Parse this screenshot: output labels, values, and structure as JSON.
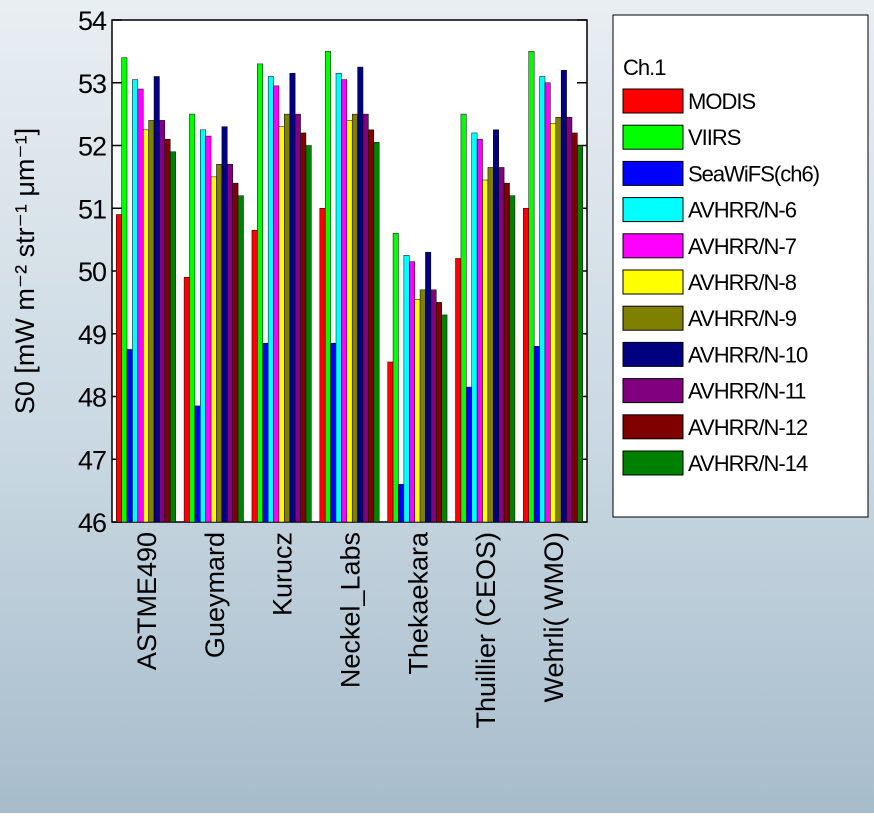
{
  "chart_data": {
    "type": "bar",
    "y_label": "S0 [mW m⁻² str⁻¹ μm⁻¹]",
    "legend_title": "Ch.1",
    "legend_position": "right",
    "categories": [
      "ASTME490",
      "Gueymard",
      "Kurucz",
      "Neckel_Labs",
      "Thekaekara",
      "Thuillier (CEOS)",
      "Wehrli( WMO)"
    ],
    "ylim": [
      46,
      54
    ],
    "yticks": [
      46,
      47,
      48,
      49,
      50,
      51,
      52,
      53,
      54
    ],
    "grid": false,
    "series": [
      {
        "name": "MODIS",
        "color": "#ff0000",
        "values": [
          50.9,
          49.9,
          50.65,
          51.0,
          48.55,
          50.2,
          51.0
        ]
      },
      {
        "name": "VIIRS",
        "color": "#00ff00",
        "values": [
          53.4,
          52.5,
          53.3,
          53.5,
          50.6,
          52.5,
          53.5
        ]
      },
      {
        "name": "SeaWiFS(ch6)",
        "color": "#0000ff",
        "values": [
          48.75,
          47.85,
          48.85,
          48.85,
          46.6,
          48.15,
          48.8
        ]
      },
      {
        "name": "AVHRR/N-6",
        "color": "#00ffff",
        "values": [
          53.05,
          52.25,
          53.1,
          53.15,
          50.25,
          52.2,
          53.1
        ]
      },
      {
        "name": "AVHRR/N-7",
        "color": "#ff00ff",
        "values": [
          52.9,
          52.15,
          52.95,
          53.05,
          50.15,
          52.1,
          53.0
        ]
      },
      {
        "name": "AVHRR/N-8",
        "color": "#ffff00",
        "values": [
          52.25,
          51.5,
          52.3,
          52.4,
          49.55,
          51.45,
          52.35
        ]
      },
      {
        "name": "AVHRR/N-9",
        "color": "#808000",
        "values": [
          52.4,
          51.7,
          52.5,
          52.5,
          49.7,
          51.65,
          52.45
        ]
      },
      {
        "name": "AVHRR/N-10",
        "color": "#000080",
        "values": [
          53.1,
          52.3,
          53.15,
          53.25,
          50.3,
          52.25,
          53.2
        ]
      },
      {
        "name": "AVHRR/N-11",
        "color": "#800080",
        "values": [
          52.4,
          51.7,
          52.5,
          52.5,
          49.7,
          51.65,
          52.45
        ]
      },
      {
        "name": "AVHRR/N-12",
        "color": "#800000",
        "values": [
          52.1,
          51.4,
          52.2,
          52.25,
          49.5,
          51.4,
          52.2
        ]
      },
      {
        "name": "AVHRR/N-14",
        "color": "#008000",
        "values": [
          51.9,
          51.2,
          52.0,
          52.05,
          49.3,
          51.2,
          52.0
        ]
      }
    ]
  }
}
